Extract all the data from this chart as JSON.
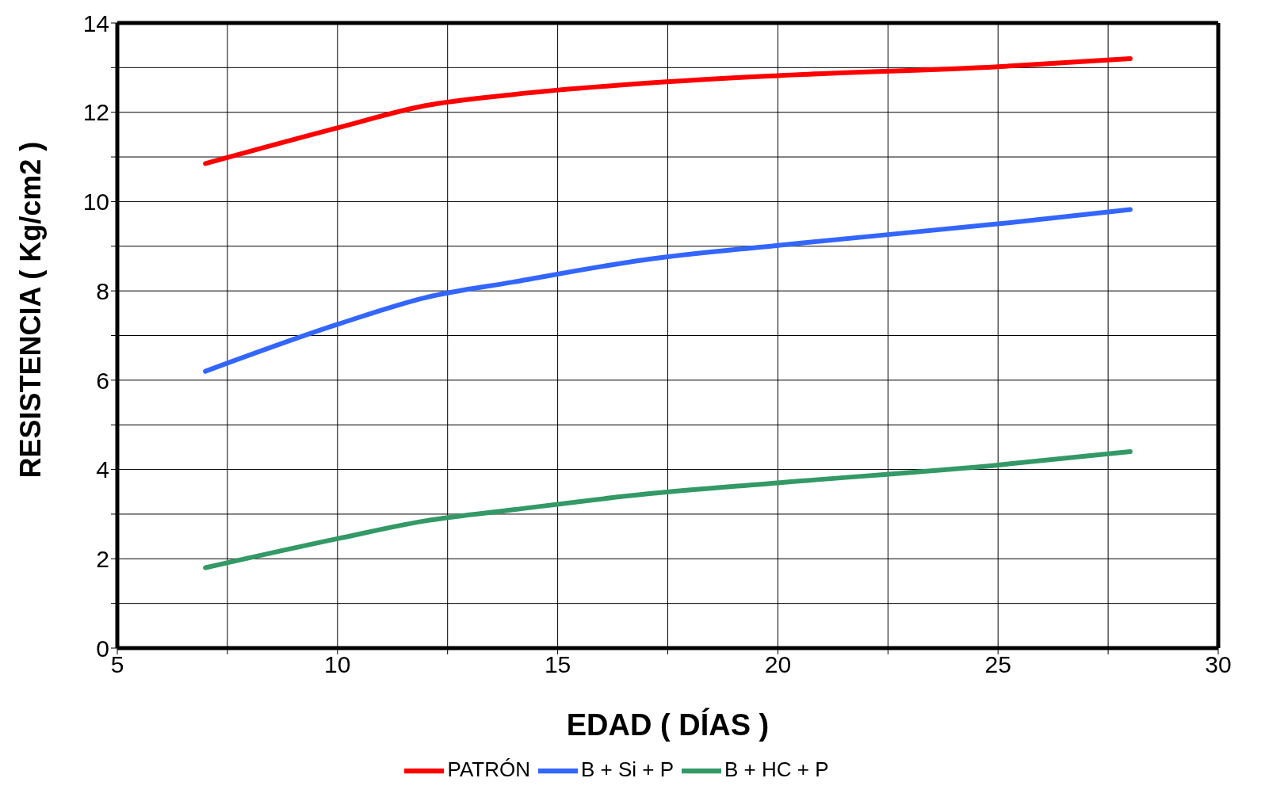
{
  "chart_data": {
    "type": "line",
    "xlabel": "EDAD ( DÍAS )",
    "ylabel": "RESISTENCIA ( Kg/cm2 )",
    "x": [
      7,
      10,
      12,
      14,
      17,
      20,
      25,
      28
    ],
    "series": [
      {
        "name": "PATRÓN",
        "color": "#ff0000",
        "values": [
          10.85,
          11.65,
          12.15,
          12.4,
          12.65,
          12.82,
          13.02,
          13.2
        ]
      },
      {
        "name": "B + Si + P",
        "color": "#3366ff",
        "values": [
          6.2,
          7.25,
          7.85,
          8.2,
          8.7,
          9.02,
          9.5,
          9.82
        ]
      },
      {
        "name": "B + HC + P",
        "color": "#339966",
        "values": [
          1.8,
          2.45,
          2.85,
          3.1,
          3.45,
          3.7,
          4.1,
          4.4
        ]
      }
    ],
    "xlim": [
      5,
      30
    ],
    "xticks": [
      5,
      {
        "value": 7.5,
        "label": null
      },
      10,
      {
        "value": 12.5,
        "label": null
      },
      15,
      {
        "value": 17.5,
        "label": null
      },
      20,
      {
        "value": 22.5,
        "label": null
      },
      25,
      {
        "value": 27.5,
        "label": null
      },
      30
    ],
    "ylim": [
      0,
      14
    ],
    "yticks": [
      0,
      {
        "value": 1,
        "label": null
      },
      2,
      {
        "value": 3,
        "label": null
      },
      4,
      {
        "value": 5,
        "label": null
      },
      6,
      {
        "value": 7,
        "label": null
      },
      8,
      {
        "value": 9,
        "label": null
      },
      10,
      {
        "value": 11,
        "label": null
      },
      12,
      {
        "value": 13,
        "label": null
      },
      14
    ],
    "grid": true,
    "legend": "bottom",
    "marker": "none",
    "line_style": "solid"
  }
}
